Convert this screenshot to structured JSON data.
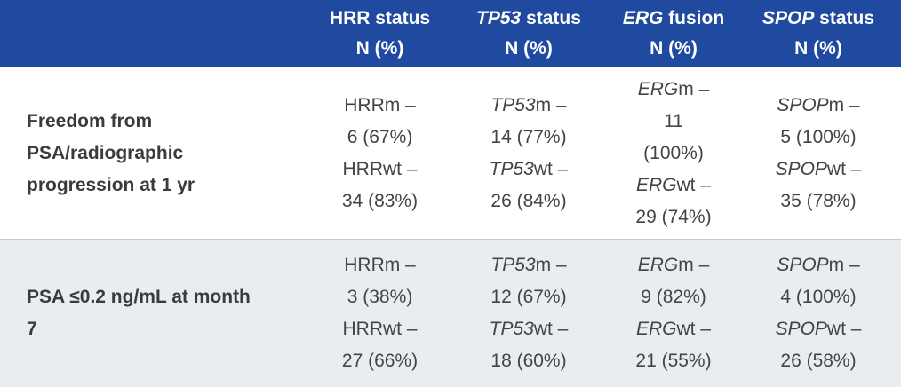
{
  "header": {
    "columns": [
      {
        "name_prefix": "",
        "name_italic": "",
        "name_rest": "HRR status",
        "unit": "N (%)"
      },
      {
        "name_prefix": "",
        "name_italic": "TP53",
        "name_rest": " status",
        "unit": "N (%)"
      },
      {
        "name_prefix": "",
        "name_italic": "ERG",
        "name_rest": " fusion",
        "unit": "N (%)"
      },
      {
        "name_prefix": "",
        "name_italic": "SPOP",
        "name_rest": " status",
        "unit": "N (%)"
      }
    ]
  },
  "rows": [
    {
      "label_l1": "Freedom from",
      "label_l2": "PSA/radiographic",
      "label_l3": "progression at 1 yr",
      "cells": [
        {
          "lines": [
            [
              "",
              "HRRm –"
            ],
            [
              "",
              "6 (67%)"
            ],
            [
              "",
              "HRRwt –"
            ],
            [
              "",
              "34 (83%)"
            ]
          ]
        },
        {
          "lines": [
            [
              "TP53",
              "m –"
            ],
            [
              "",
              "14 (77%)"
            ],
            [
              "TP53",
              "wt –"
            ],
            [
              "",
              "26 (84%)"
            ]
          ]
        },
        {
          "lines": [
            [
              "ERG",
              "m –"
            ],
            [
              "",
              "11"
            ],
            [
              "",
              "(100%)"
            ],
            [
              "ERG",
              "wt –"
            ],
            [
              "",
              "29 (74%)"
            ]
          ]
        },
        {
          "lines": [
            [
              "SPOP",
              "m –"
            ],
            [
              "",
              "5 (100%)"
            ],
            [
              "SPOP",
              "wt –"
            ],
            [
              "",
              "35 (78%)"
            ]
          ]
        }
      ]
    },
    {
      "label_l1": "PSA ≤0.2 ng/mL at month",
      "label_l2": "7",
      "label_l3": "",
      "cells": [
        {
          "lines": [
            [
              "",
              "HRRm –"
            ],
            [
              "",
              "3 (38%)"
            ],
            [
              "",
              "HRRwt –"
            ],
            [
              "",
              "27 (66%)"
            ]
          ]
        },
        {
          "lines": [
            [
              "TP53",
              "m –"
            ],
            [
              "",
              "12 (67%)"
            ],
            [
              "TP53",
              "wt –"
            ],
            [
              "",
              "18 (60%)"
            ]
          ]
        },
        {
          "lines": [
            [
              "ERG",
              "m –"
            ],
            [
              "",
              "9 (82%)"
            ],
            [
              "ERG",
              "wt –"
            ],
            [
              "",
              "21 (55%)"
            ]
          ]
        },
        {
          "lines": [
            [
              "SPOP",
              "m –"
            ],
            [
              "",
              "4 (100%)"
            ],
            [
              "SPOP",
              "wt –"
            ],
            [
              "",
              "26 (58%)"
            ]
          ]
        }
      ]
    }
  ],
  "colors": {
    "header_bg": "#1f4aa0",
    "row2_bg": "#e9edf2"
  }
}
